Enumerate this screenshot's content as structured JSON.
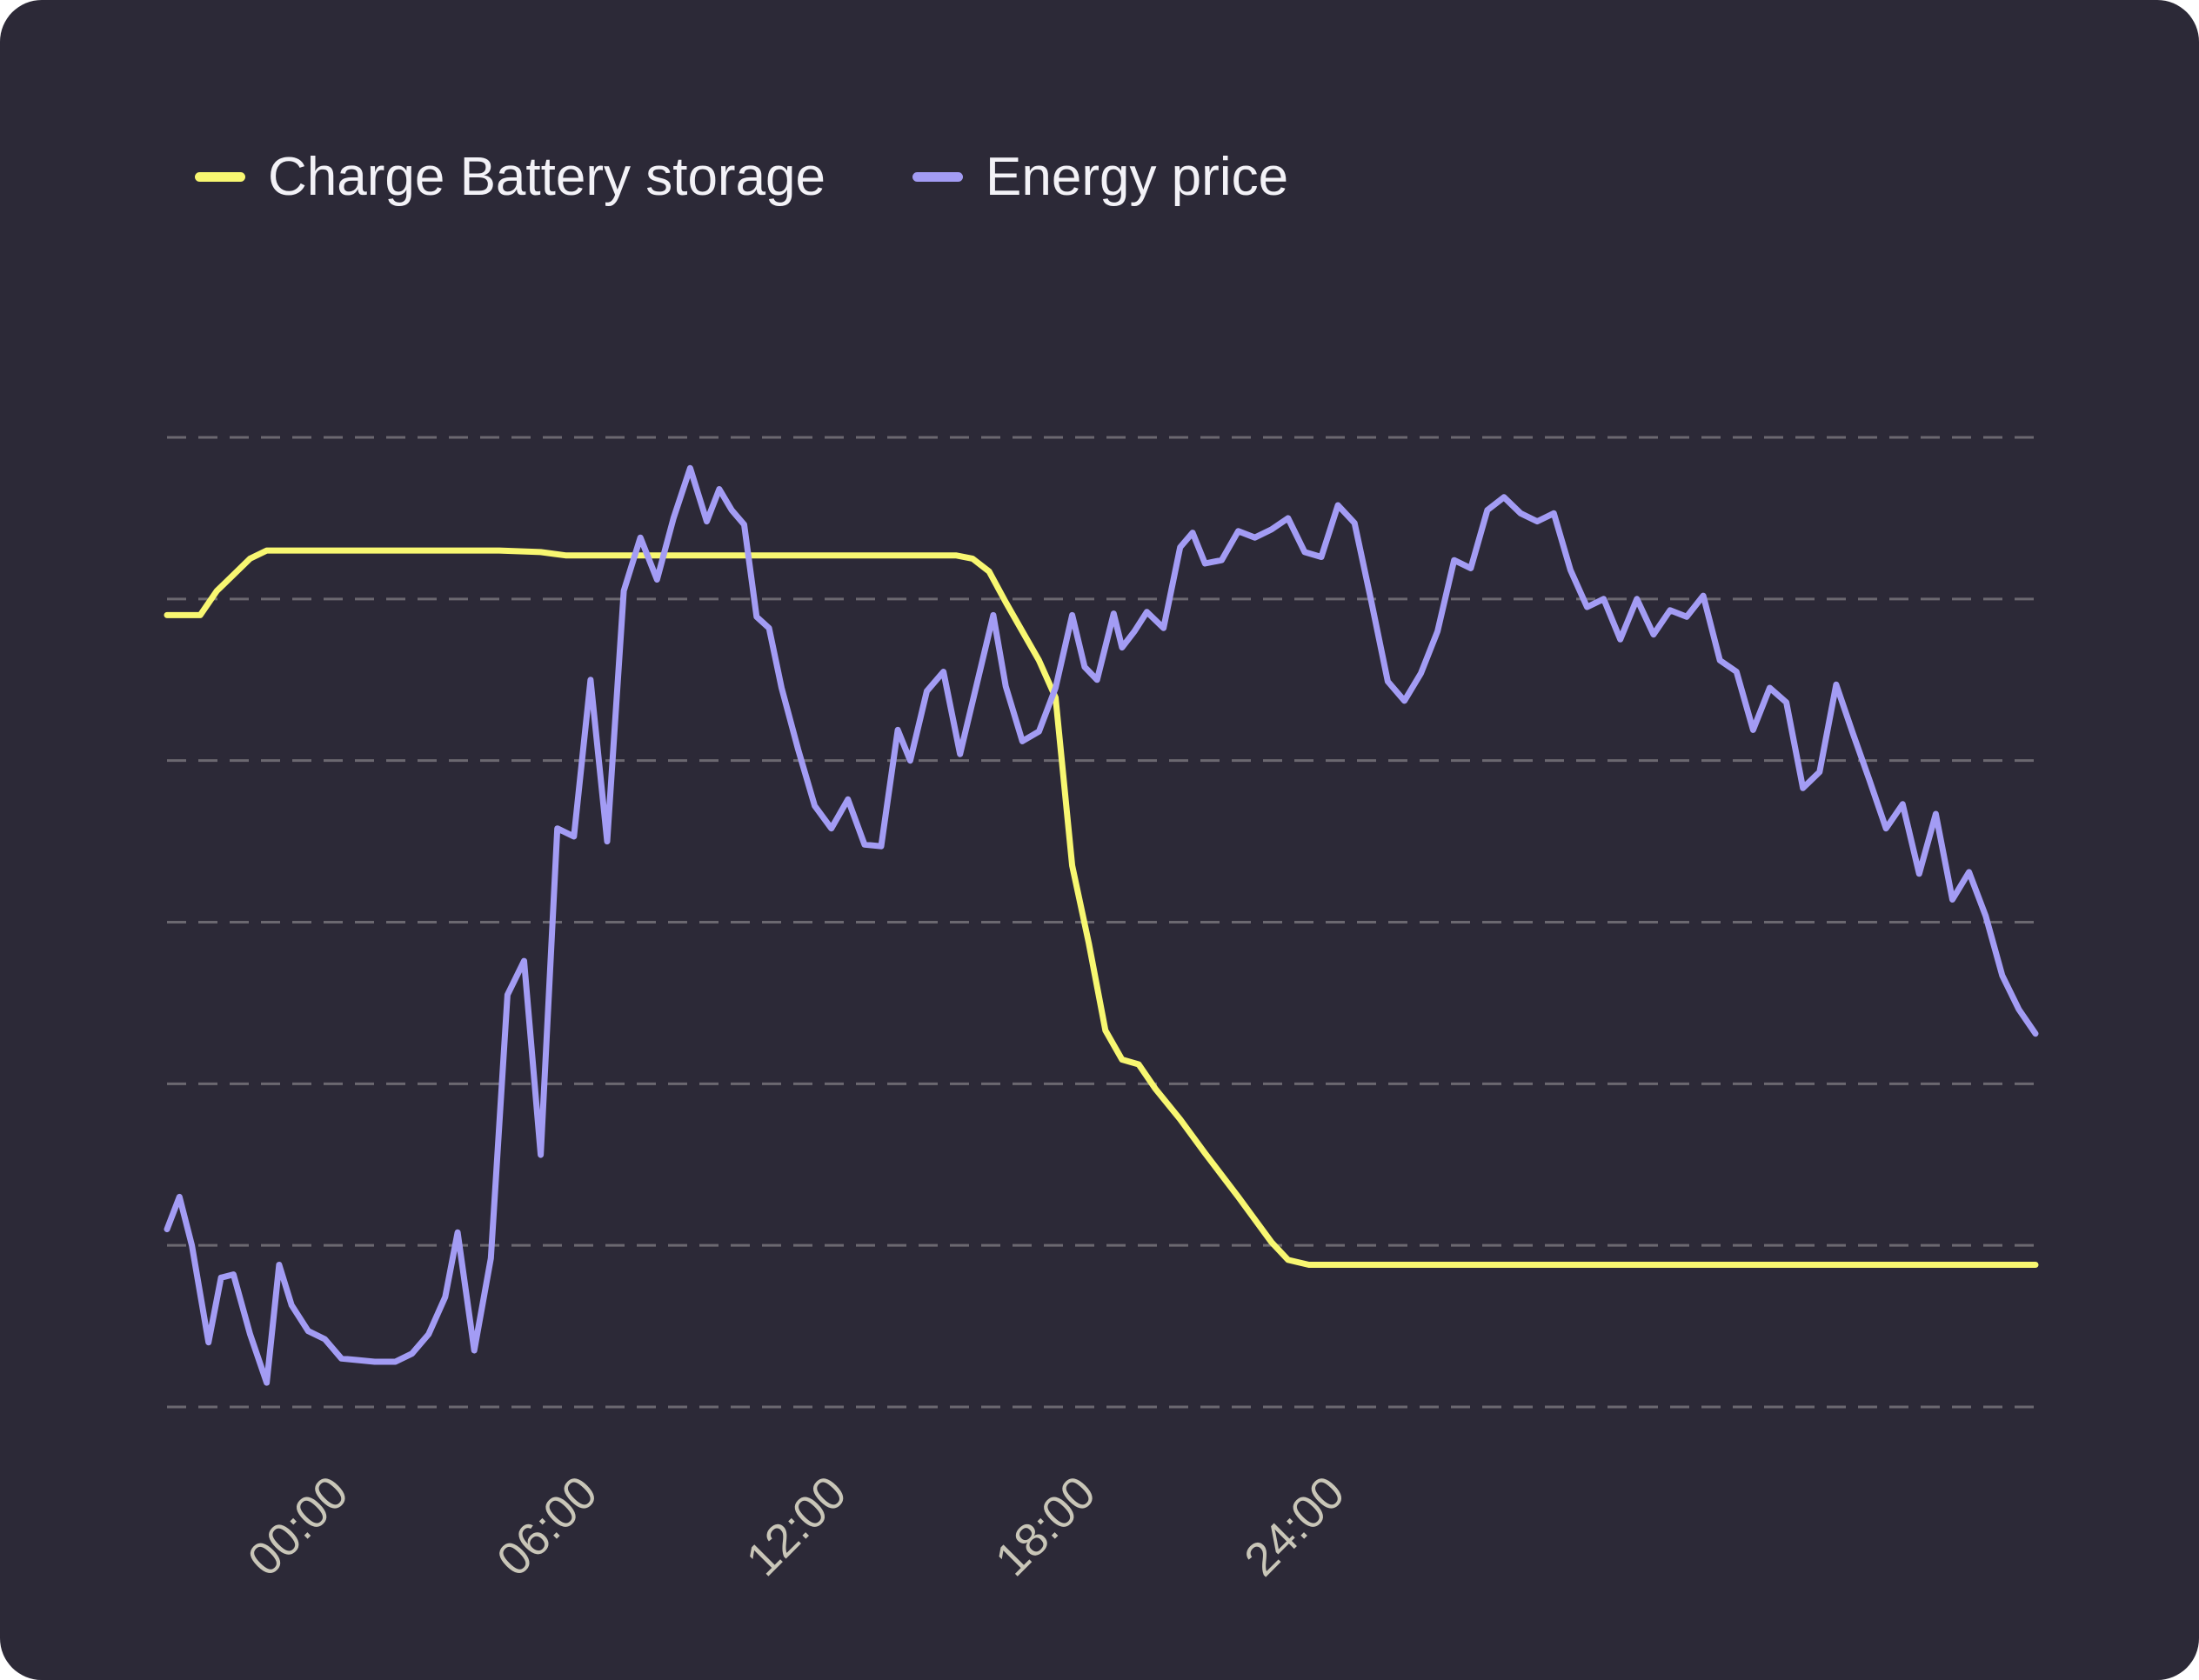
{
  "chart_data": {
    "type": "line",
    "title": "",
    "xlabel": "",
    "ylabel": "",
    "x_unit": "hours",
    "xlim": [
      -3,
      42
    ],
    "ylim": [
      0,
      6
    ],
    "x_ticks": [
      {
        "value": 0,
        "label": "00:00"
      },
      {
        "value": 6,
        "label": "06:00"
      },
      {
        "value": 12,
        "label": "12:00"
      },
      {
        "value": 18,
        "label": "18:00"
      },
      {
        "value": 24,
        "label": "24:00"
      }
    ],
    "y_gridlines": [
      0,
      1,
      2,
      3,
      4,
      5,
      6
    ],
    "grid": true,
    "legend_position": "top-left",
    "series": [
      {
        "name": "Charge Battery storage",
        "color": "#f8f771",
        "points": [
          [
            -3.0,
            4.9
          ],
          [
            -2.6,
            4.9
          ],
          [
            -2.2,
            4.9
          ],
          [
            -1.8,
            5.05
          ],
          [
            -1.4,
            5.15
          ],
          [
            -1.0,
            5.25
          ],
          [
            -0.6,
            5.3
          ],
          [
            0.0,
            5.3
          ],
          [
            1.0,
            5.3
          ],
          [
            2.0,
            5.3
          ],
          [
            3.0,
            5.3
          ],
          [
            4.0,
            5.3
          ],
          [
            5.0,
            5.3
          ],
          [
            6.0,
            5.29
          ],
          [
            6.6,
            5.27
          ],
          [
            7.0,
            5.27
          ],
          [
            8.0,
            5.27
          ],
          [
            9.0,
            5.27
          ],
          [
            10.0,
            5.27
          ],
          [
            11.0,
            5.27
          ],
          [
            12.0,
            5.27
          ],
          [
            13.0,
            5.27
          ],
          [
            14.0,
            5.27
          ],
          [
            15.0,
            5.27
          ],
          [
            16.0,
            5.27
          ],
          [
            16.4,
            5.25
          ],
          [
            16.8,
            5.17
          ],
          [
            17.2,
            4.98
          ],
          [
            17.6,
            4.8
          ],
          [
            18.0,
            4.62
          ],
          [
            18.4,
            4.39
          ],
          [
            18.8,
            3.35
          ],
          [
            19.2,
            2.87
          ],
          [
            19.6,
            2.33
          ],
          [
            20.0,
            2.15
          ],
          [
            20.4,
            2.12
          ],
          [
            20.8,
            1.97
          ],
          [
            21.4,
            1.78
          ],
          [
            22.0,
            1.57
          ],
          [
            22.8,
            1.3
          ],
          [
            23.6,
            1.02
          ],
          [
            24.0,
            0.91
          ],
          [
            24.5,
            0.88
          ],
          [
            26.0,
            0.88
          ],
          [
            30.0,
            0.88
          ],
          [
            35.0,
            0.88
          ],
          [
            40.0,
            0.88
          ],
          [
            42.0,
            0.88
          ]
        ]
      },
      {
        "name": "Energy price",
        "color": "#a39cf4",
        "points": [
          [
            -3.0,
            1.1
          ],
          [
            -2.7,
            1.3
          ],
          [
            -2.4,
            1.0
          ],
          [
            -2.0,
            0.4
          ],
          [
            -1.7,
            0.8
          ],
          [
            -1.4,
            0.82
          ],
          [
            -1.0,
            0.45
          ],
          [
            -0.6,
            0.15
          ],
          [
            -0.3,
            0.88
          ],
          [
            0.0,
            0.63
          ],
          [
            0.4,
            0.47
          ],
          [
            0.8,
            0.42
          ],
          [
            1.2,
            0.3
          ],
          [
            1.6,
            0.29
          ],
          [
            2.0,
            0.28
          ],
          [
            2.5,
            0.28
          ],
          [
            2.9,
            0.33
          ],
          [
            3.3,
            0.45
          ],
          [
            3.7,
            0.68
          ],
          [
            4.0,
            1.08
          ],
          [
            4.4,
            0.35
          ],
          [
            4.8,
            0.92
          ],
          [
            5.2,
            2.55
          ],
          [
            5.6,
            2.76
          ],
          [
            6.0,
            1.56
          ],
          [
            6.4,
            3.58
          ],
          [
            6.8,
            3.53
          ],
          [
            7.2,
            4.5
          ],
          [
            7.6,
            3.5
          ],
          [
            8.0,
            5.05
          ],
          [
            8.4,
            5.38
          ],
          [
            8.8,
            5.12
          ],
          [
            9.2,
            5.5
          ],
          [
            9.6,
            5.81
          ],
          [
            10.0,
            5.48
          ],
          [
            10.3,
            5.68
          ],
          [
            10.6,
            5.55
          ],
          [
            10.9,
            5.46
          ],
          [
            11.2,
            4.89
          ],
          [
            11.5,
            4.82
          ],
          [
            11.8,
            4.45
          ],
          [
            12.2,
            4.07
          ],
          [
            12.6,
            3.72
          ],
          [
            13.0,
            3.58
          ],
          [
            13.4,
            3.76
          ],
          [
            13.8,
            3.48
          ],
          [
            14.2,
            3.47
          ],
          [
            14.6,
            4.19
          ],
          [
            14.9,
            4.0
          ],
          [
            15.3,
            4.43
          ],
          [
            15.7,
            4.55
          ],
          [
            16.1,
            4.04
          ],
          [
            16.5,
            4.47
          ],
          [
            16.9,
            4.9
          ],
          [
            17.2,
            4.46
          ],
          [
            17.6,
            4.12
          ],
          [
            18.0,
            4.18
          ],
          [
            18.4,
            4.45
          ],
          [
            18.8,
            4.9
          ],
          [
            19.1,
            4.58
          ],
          [
            19.4,
            4.5
          ],
          [
            19.8,
            4.91
          ],
          [
            20.0,
            4.7
          ],
          [
            20.3,
            4.8
          ],
          [
            20.6,
            4.92
          ],
          [
            21.0,
            4.82
          ],
          [
            21.4,
            5.32
          ],
          [
            21.7,
            5.41
          ],
          [
            22.0,
            5.22
          ],
          [
            22.4,
            5.24
          ],
          [
            22.8,
            5.42
          ],
          [
            23.2,
            5.38
          ],
          [
            23.6,
            5.43
          ],
          [
            24.0,
            5.5
          ],
          [
            24.4,
            5.29
          ],
          [
            24.8,
            5.26
          ],
          [
            25.2,
            5.58
          ],
          [
            25.6,
            5.47
          ],
          [
            26.0,
            4.99
          ],
          [
            26.4,
            4.49
          ],
          [
            26.8,
            4.37
          ],
          [
            27.2,
            4.54
          ],
          [
            27.6,
            4.8
          ],
          [
            28.0,
            5.24
          ],
          [
            28.4,
            5.19
          ],
          [
            28.8,
            5.55
          ],
          [
            29.2,
            5.63
          ],
          [
            29.6,
            5.53
          ],
          [
            30.0,
            5.48
          ],
          [
            30.4,
            5.53
          ],
          [
            30.8,
            5.18
          ],
          [
            31.2,
            4.95
          ],
          [
            31.6,
            5.0
          ],
          [
            32.0,
            4.75
          ],
          [
            32.4,
            5.0
          ],
          [
            32.8,
            4.78
          ],
          [
            33.2,
            4.93
          ],
          [
            33.6,
            4.89
          ],
          [
            34.0,
            5.02
          ],
          [
            34.4,
            4.62
          ],
          [
            34.8,
            4.55
          ],
          [
            35.2,
            4.19
          ],
          [
            35.6,
            4.45
          ],
          [
            36.0,
            4.36
          ],
          [
            36.4,
            3.83
          ],
          [
            36.8,
            3.93
          ],
          [
            37.2,
            4.47
          ],
          [
            37.6,
            4.17
          ],
          [
            38.0,
            3.88
          ],
          [
            38.4,
            3.58
          ],
          [
            38.8,
            3.73
          ],
          [
            39.2,
            3.3
          ],
          [
            39.6,
            3.67
          ],
          [
            40.0,
            3.14
          ],
          [
            40.4,
            3.31
          ],
          [
            40.8,
            3.04
          ],
          [
            41.2,
            2.67
          ],
          [
            41.6,
            2.46
          ],
          [
            42.0,
            2.31
          ]
        ]
      }
    ]
  }
}
